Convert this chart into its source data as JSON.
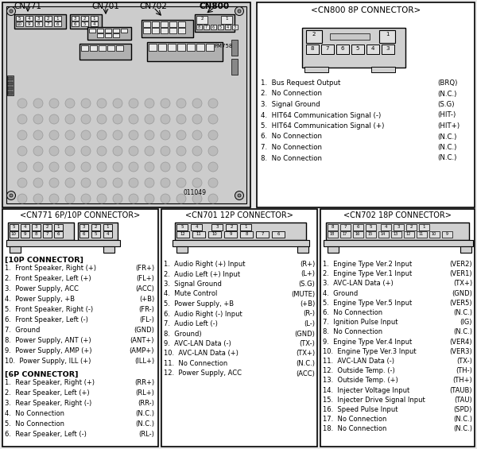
{
  "bg_color": "#e8e8e8",
  "box_bg": "#ffffff",
  "cn800_title": "<CN800 8P CONNECTOR>",
  "cn800_pins_left": [
    "Bus Request Output",
    "No Connection",
    "Signal Ground",
    "HIT64 Communication Signal (-)",
    "HIT64 Communication Signal (+)",
    "No Connection",
    "No Connection",
    "No Connection"
  ],
  "cn800_pins_right": [
    "(BRQ)",
    "(N.C.)",
    "(S.G)",
    "(HIT-)",
    "(HIT+)",
    "(N.C.)",
    "(N.C.)",
    "(N.C.)"
  ],
  "cn771_title": "<CN771 6P/10P CONNECTOR>",
  "cn771_10p_header": "[10P CONNECTOR]",
  "cn771_10p_left": [
    "Front Speaker, Right (+)",
    "Front Speaker, Left (+)",
    "Power Supply, ACC",
    "Power Supply, +B",
    "Front Speaker, Right (-)",
    "Front Speaker, Left (-)",
    "Ground",
    "Power Supply, ANT (+)",
    "Power Supply, AMP (+)",
    "Power Supply, ILL (+)"
  ],
  "cn771_10p_right": [
    "(FR+)",
    "(FL+)",
    "(ACC)",
    "(+B)",
    "(FR-)",
    "(FL-)",
    "(GND)",
    "(ANT+)",
    "(AMP+)",
    "(ILL+)"
  ],
  "cn771_6p_header": "[6P CONNECTOR]",
  "cn771_6p_left": [
    "Rear Speaker, Right (+)",
    "Rear Speaker, Left (+)",
    "Rear Speaker, Right (-)",
    "No Connection",
    "No Connection",
    "Rear Speaker, Left (-)"
  ],
  "cn771_6p_right": [
    "(RR+)",
    "(RL+)",
    "(RR-)",
    "(N.C.)",
    "(N.C.)",
    "(RL-)"
  ],
  "cn701_title": "<CN701 12P CONNECTOR>",
  "cn701_left": [
    "Audio Right (+) Input",
    "Audio Left (+) Input",
    "Signal Ground",
    "Mute Control",
    "Power Supply, +B",
    "Audio Right (-) Input",
    "Audio Left (-)",
    "Ground)",
    "AVC-LAN Data (-)",
    "AVC-LAN Data (+)",
    "No Connection",
    "Power Supply, ACC"
  ],
  "cn701_right": [
    "(R+)",
    "(L+)",
    "(S.G)",
    "(MUTE)",
    "(+B)",
    "(R-)",
    "(L-)",
    "(GND)",
    "(TX-)",
    "(TX+)",
    "(N.C.)",
    "(ACC)"
  ],
  "cn702_title": "<CN702 18P CONNECTOR>",
  "cn702_left": [
    "Engine Type Ver.2 Input",
    "Engine Type Ver.1 Input",
    "AVC-LAN Data (+)",
    "Ground",
    "Engine Type Ver.5 Input",
    "No Connection",
    "Ignition Pulse Input",
    "No Connection",
    "Engine Type Ver.4 Input",
    "Engine Type Ver.3 Input",
    "AVC-LAN Data (-)",
    "Outside Temp. (-)",
    "Outside Temp. (+)",
    "Injecter Voltage Input",
    "Injecter Drive Signal Input",
    "Speed Pulse Input",
    "No Connection",
    "No Connection"
  ],
  "cn702_right": [
    "(VER2)",
    "(VER1)",
    "(TX+)",
    "(GND)",
    "(VER5)",
    "(N.C.)",
    "(IG)",
    "(N.C.)",
    "(VER4)",
    "(VER3)",
    "(TX-)",
    "(TH-)",
    "(TH+)",
    "(TAUB)",
    "(TAU)",
    "(SPD)",
    "(N.C.)",
    "(N.C.)"
  ]
}
